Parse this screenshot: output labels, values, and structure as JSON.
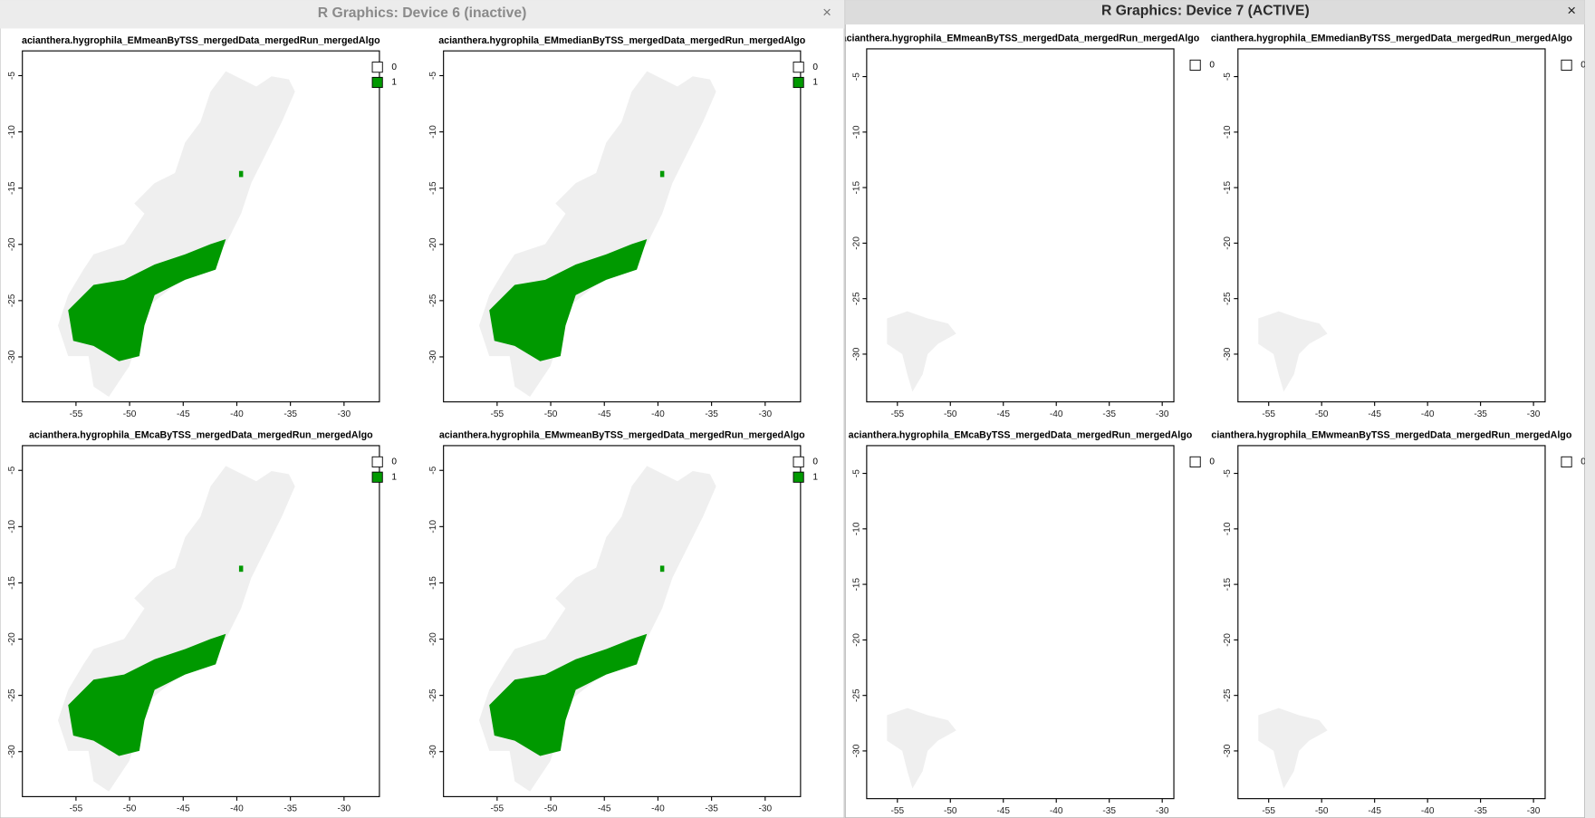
{
  "windows": [
    {
      "title": "R Graphics: Device 6 (inactive)",
      "close": "×",
      "axes": {
        "xlim": [
          -60,
          -26.7
        ],
        "ylim": [
          -2.8,
          -34
        ],
        "xticks": [
          -55,
          -50,
          -45,
          -40,
          -35,
          -30
        ],
        "yticks": [
          -5,
          -10,
          -15,
          -20,
          -25,
          -30
        ]
      },
      "plots": [
        {
          "title": "acianthera.hygrophila_EMmeanByTSS_mergedData_mergedRun_mergedAlgo",
          "legend": [
            {
              "label": "0",
              "color": "#ffffff"
            },
            {
              "label": "1",
              "color": "#009900"
            }
          ]
        },
        {
          "title": "acianthera.hygrophila_EMmedianByTSS_mergedData_mergedRun_mergedAlgo",
          "legend": [
            {
              "label": "0",
              "color": "#ffffff"
            },
            {
              "label": "1",
              "color": "#009900"
            }
          ]
        },
        {
          "title": "acianthera.hygrophila_EMcaByTSS_mergedData_mergedRun_mergedAlgo",
          "legend": [
            {
              "label": "0",
              "color": "#ffffff"
            },
            {
              "label": "1",
              "color": "#009900"
            }
          ]
        },
        {
          "title": "acianthera.hygrophila_EMwmeanByTSS_mergedData_mergedRun_mergedAlgo",
          "legend": [
            {
              "label": "0",
              "color": "#ffffff"
            },
            {
              "label": "1",
              "color": "#009900"
            }
          ]
        }
      ]
    },
    {
      "title": "R Graphics: Device 7 (ACTIVE)",
      "close": "×",
      "axes": {
        "xlim": [
          -57.9,
          -28.9
        ],
        "ylim": [
          -2.5,
          -34.3
        ],
        "xticks": [
          -55,
          -50,
          -45,
          -40,
          -35,
          -30
        ],
        "yticks": [
          -5,
          -10,
          -15,
          -20,
          -25,
          -30
        ]
      },
      "plots": [
        {
          "title": "acianthera.hygrophila_EMmeanByTSS_mergedData_mergedRun_mergedAlgo",
          "legend": [
            {
              "label": "0",
              "color": "#ffffff"
            }
          ]
        },
        {
          "title": "cianthera.hygrophila_EMmedianByTSS_mergedData_mergedRun_mergedAlgo",
          "legend": [
            {
              "label": "0",
              "color": "#ffffff"
            }
          ]
        },
        {
          "title": "acianthera.hygrophila_EMcaByTSS_mergedData_mergedRun_mergedAlgo",
          "legend": [
            {
              "label": "0",
              "color": "#ffffff"
            }
          ]
        },
        {
          "title": "cianthera.hygrophila_EMwmeanByTSS_mergedData_mergedRun_mergedAlgo",
          "legend": [
            {
              "label": "0",
              "color": "#ffffff"
            }
          ]
        }
      ]
    }
  ]
}
